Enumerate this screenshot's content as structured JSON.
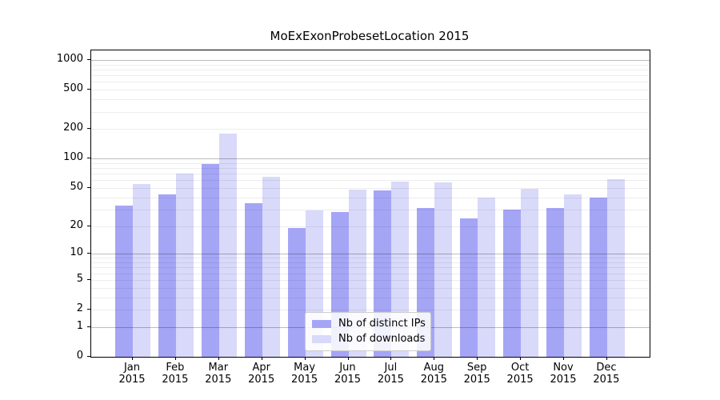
{
  "chart_data": {
    "type": "bar",
    "title": "MoExExonProbesetLocation 2015",
    "categories": [
      "Jan 2015",
      "Feb 2015",
      "Mar 2015",
      "Apr 2015",
      "May 2015",
      "Jun 2015",
      "Jul 2015",
      "Aug 2015",
      "Sep 2015",
      "Oct 2015",
      "Nov 2015",
      "Dec 2015"
    ],
    "series": [
      {
        "name": "Nb of distinct IPs",
        "color": "#a5a5f6",
        "values": [
          33,
          43,
          88,
          35,
          19,
          28,
          47,
          31,
          24,
          30,
          31,
          40
        ]
      },
      {
        "name": "Nb of downloads",
        "color": "#d9d9fa",
        "values": [
          55,
          70,
          180,
          65,
          29,
          48,
          58,
          57,
          40,
          49,
          43,
          62
        ]
      }
    ],
    "yscale": "log1p",
    "ylim": [
      0,
      1000
    ],
    "y_ticks": [
      0,
      1,
      2,
      5,
      10,
      20,
      50,
      100,
      200,
      500,
      1000
    ],
    "y_major_gridlines": [
      1,
      10,
      100,
      1000
    ],
    "grid": true,
    "legend_position": "lower center",
    "xlabel": "",
    "ylabel": ""
  },
  "colors": {
    "ips_bar": "#a5a5f6",
    "downloads_bar": "#d9d9fa",
    "major_grid": "#bdbdbd",
    "minor_grid": "#ededed",
    "axis": "#000000",
    "background": "#ffffff"
  }
}
